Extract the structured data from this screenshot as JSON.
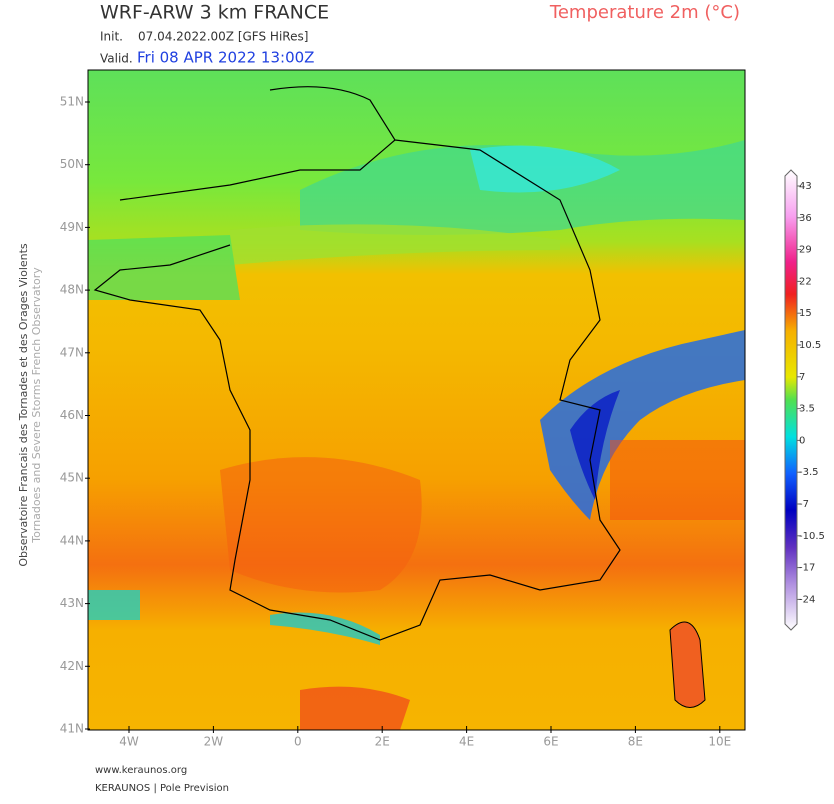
{
  "header": {
    "title": "WRF-ARW 3 km FRANCE",
    "parameter": "Temperature 2m (°C)",
    "init_label": "Init.",
    "init_value": "07.04.2022.00Z [GFS HiRes]",
    "valid_label": "Valid.",
    "valid_value": "Fri 08 APR 2022 13:00Z"
  },
  "side_text": {
    "line1": "Observatoire Francais des Tornades et des Orages Violents",
    "line2": "Tornadoes and Severe Storms French Observatory"
  },
  "map": {
    "lat_labels": [
      "51N",
      "50N",
      "49N",
      "48N",
      "47N",
      "46N",
      "45N",
      "44N",
      "43N",
      "42N",
      "41N"
    ],
    "lon_labels": [
      "4W",
      "2W",
      "0",
      "2E",
      "4E",
      "6E",
      "8E",
      "10E"
    ]
  },
  "colorbar": {
    "labels": [
      "43",
      "36",
      "29",
      "22",
      "15",
      "10.5",
      "7",
      "3.5",
      "0",
      "-3.5",
      "-7",
      "-10.5",
      "-17",
      "-24"
    ]
  },
  "footer": {
    "url": "www.keraunos.org",
    "credit": "KERAUNOS | Pole Prevision"
  }
}
